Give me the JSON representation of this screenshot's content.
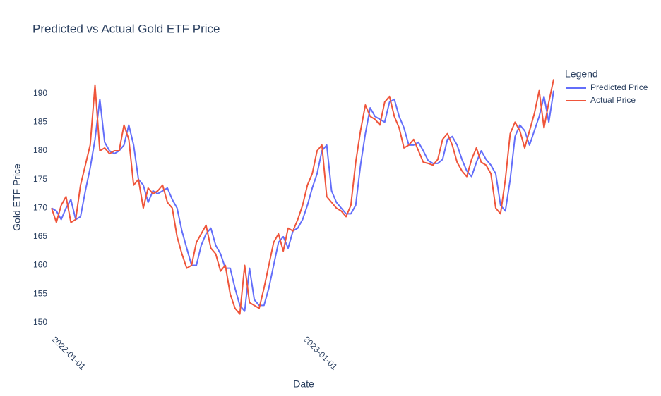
{
  "chart_data": {
    "type": "line",
    "title": "Predicted vs Actual Gold ETF Price",
    "x_label": "Date",
    "y_label": "Gold ETF Price",
    "legend_title": "Legend",
    "legend_position": "right",
    "grid": false,
    "x": [
      "2021-12-30",
      "2022-01-06",
      "2022-01-13",
      "2022-01-20",
      "2022-01-27",
      "2022-02-03",
      "2022-02-10",
      "2022-02-17",
      "2022-02-24",
      "2022-03-03",
      "2022-03-10",
      "2022-03-17",
      "2022-03-24",
      "2022-03-31",
      "2022-04-07",
      "2022-04-14",
      "2022-04-21",
      "2022-04-28",
      "2022-05-05",
      "2022-05-12",
      "2022-05-19",
      "2022-05-26",
      "2022-06-02",
      "2022-06-09",
      "2022-06-16",
      "2022-06-23",
      "2022-06-30",
      "2022-07-07",
      "2022-07-14",
      "2022-07-21",
      "2022-07-28",
      "2022-08-04",
      "2022-08-11",
      "2022-08-18",
      "2022-08-25",
      "2022-09-01",
      "2022-09-08",
      "2022-09-15",
      "2022-09-22",
      "2022-09-29",
      "2022-10-06",
      "2022-10-13",
      "2022-10-20",
      "2022-10-27",
      "2022-11-03",
      "2022-11-10",
      "2022-11-17",
      "2022-11-24",
      "2022-12-01",
      "2022-12-08",
      "2022-12-15",
      "2022-12-22",
      "2022-12-29",
      "2023-01-05",
      "2023-01-12",
      "2023-01-19",
      "2023-01-26",
      "2023-02-02",
      "2023-02-09",
      "2023-02-16",
      "2023-02-23",
      "2023-03-02",
      "2023-03-09",
      "2023-03-16",
      "2023-03-23",
      "2023-03-30",
      "2023-04-06",
      "2023-04-13",
      "2023-04-20",
      "2023-04-27",
      "2023-05-04",
      "2023-05-11",
      "2023-05-18",
      "2023-05-25",
      "2023-06-01",
      "2023-06-08",
      "2023-06-15",
      "2023-06-22",
      "2023-06-29",
      "2023-07-06",
      "2023-07-13",
      "2023-07-20",
      "2023-07-27",
      "2023-08-03",
      "2023-08-10",
      "2023-08-17",
      "2023-08-24",
      "2023-08-31",
      "2023-09-07",
      "2023-09-14",
      "2023-09-21",
      "2023-09-28",
      "2023-10-05",
      "2023-10-12",
      "2023-10-19",
      "2023-10-26",
      "2023-11-02",
      "2023-11-09",
      "2023-11-16",
      "2023-11-23",
      "2023-11-30",
      "2023-12-07",
      "2023-12-14",
      "2023-12-21",
      "2023-12-28"
    ],
    "series": [
      {
        "name": "Predicted Price",
        "color": "#636efa",
        "values": [
          170,
          169.5,
          168,
          170,
          171.5,
          168,
          168.5,
          173,
          177,
          182,
          189,
          181.5,
          180,
          179.5,
          180,
          181,
          184.5,
          181,
          175,
          174,
          171,
          173,
          172.5,
          173,
          173.5,
          171.5,
          170,
          166,
          163,
          160,
          160,
          163.5,
          165.5,
          166.5,
          163.5,
          162,
          159.5,
          159.5,
          156,
          153,
          152,
          159.5,
          154,
          153,
          153,
          156,
          160,
          164,
          165,
          163,
          166,
          166.5,
          168,
          170.5,
          173.5,
          176,
          180,
          181,
          173,
          171,
          170,
          169,
          169,
          170.5,
          177.5,
          183,
          187.5,
          186,
          185.5,
          185,
          188.5,
          189,
          186,
          184,
          181,
          181,
          181.5,
          180,
          178.3,
          177.8,
          177.8,
          178.5,
          182,
          182.5,
          181,
          178.5,
          176.5,
          175.5,
          178,
          180,
          178.5,
          177.5,
          176,
          170.5,
          169.5,
          175,
          182.5,
          184.5,
          183.5,
          181,
          183.5,
          186,
          189.5,
          185,
          190.5
        ]
      },
      {
        "name": "Actual Price",
        "color": "#ef553b",
        "values": [
          170,
          167.5,
          170.5,
          172,
          167.5,
          168,
          174,
          177.5,
          181,
          191.5,
          180,
          180.5,
          179.5,
          180,
          180,
          184.5,
          182,
          174,
          175,
          170,
          173.5,
          172.5,
          173,
          174,
          171,
          170,
          165,
          162,
          159.5,
          160,
          164,
          165.5,
          167,
          163,
          162,
          159,
          160,
          155,
          152.5,
          151.5,
          160,
          153.5,
          153,
          152.5,
          156,
          160,
          164,
          165.5,
          162.5,
          166.5,
          166,
          168,
          170.5,
          174,
          176,
          180,
          181,
          172,
          171,
          170,
          169.5,
          168.5,
          170.5,
          178,
          183.5,
          188,
          186,
          185.5,
          184.5,
          188.5,
          189.5,
          186,
          184,
          180.5,
          181,
          182,
          180,
          178,
          177.8,
          177.5,
          178.5,
          182,
          183,
          181,
          178,
          176.5,
          175.5,
          178.5,
          180.5,
          178,
          177.5,
          176,
          170,
          169,
          175,
          183,
          185,
          183.5,
          180.5,
          183.5,
          186.5,
          190.5,
          184,
          188.5,
          192.5
        ]
      }
    ],
    "xlim": [
      "2021-12-30",
      "2023-12-28"
    ],
    "xticks": [
      "2022-01-01",
      "2023-01-01"
    ],
    "ylim": [
      148.5,
      192.8
    ],
    "yticks": [
      150,
      155,
      160,
      165,
      170,
      175,
      180,
      185,
      190
    ]
  }
}
